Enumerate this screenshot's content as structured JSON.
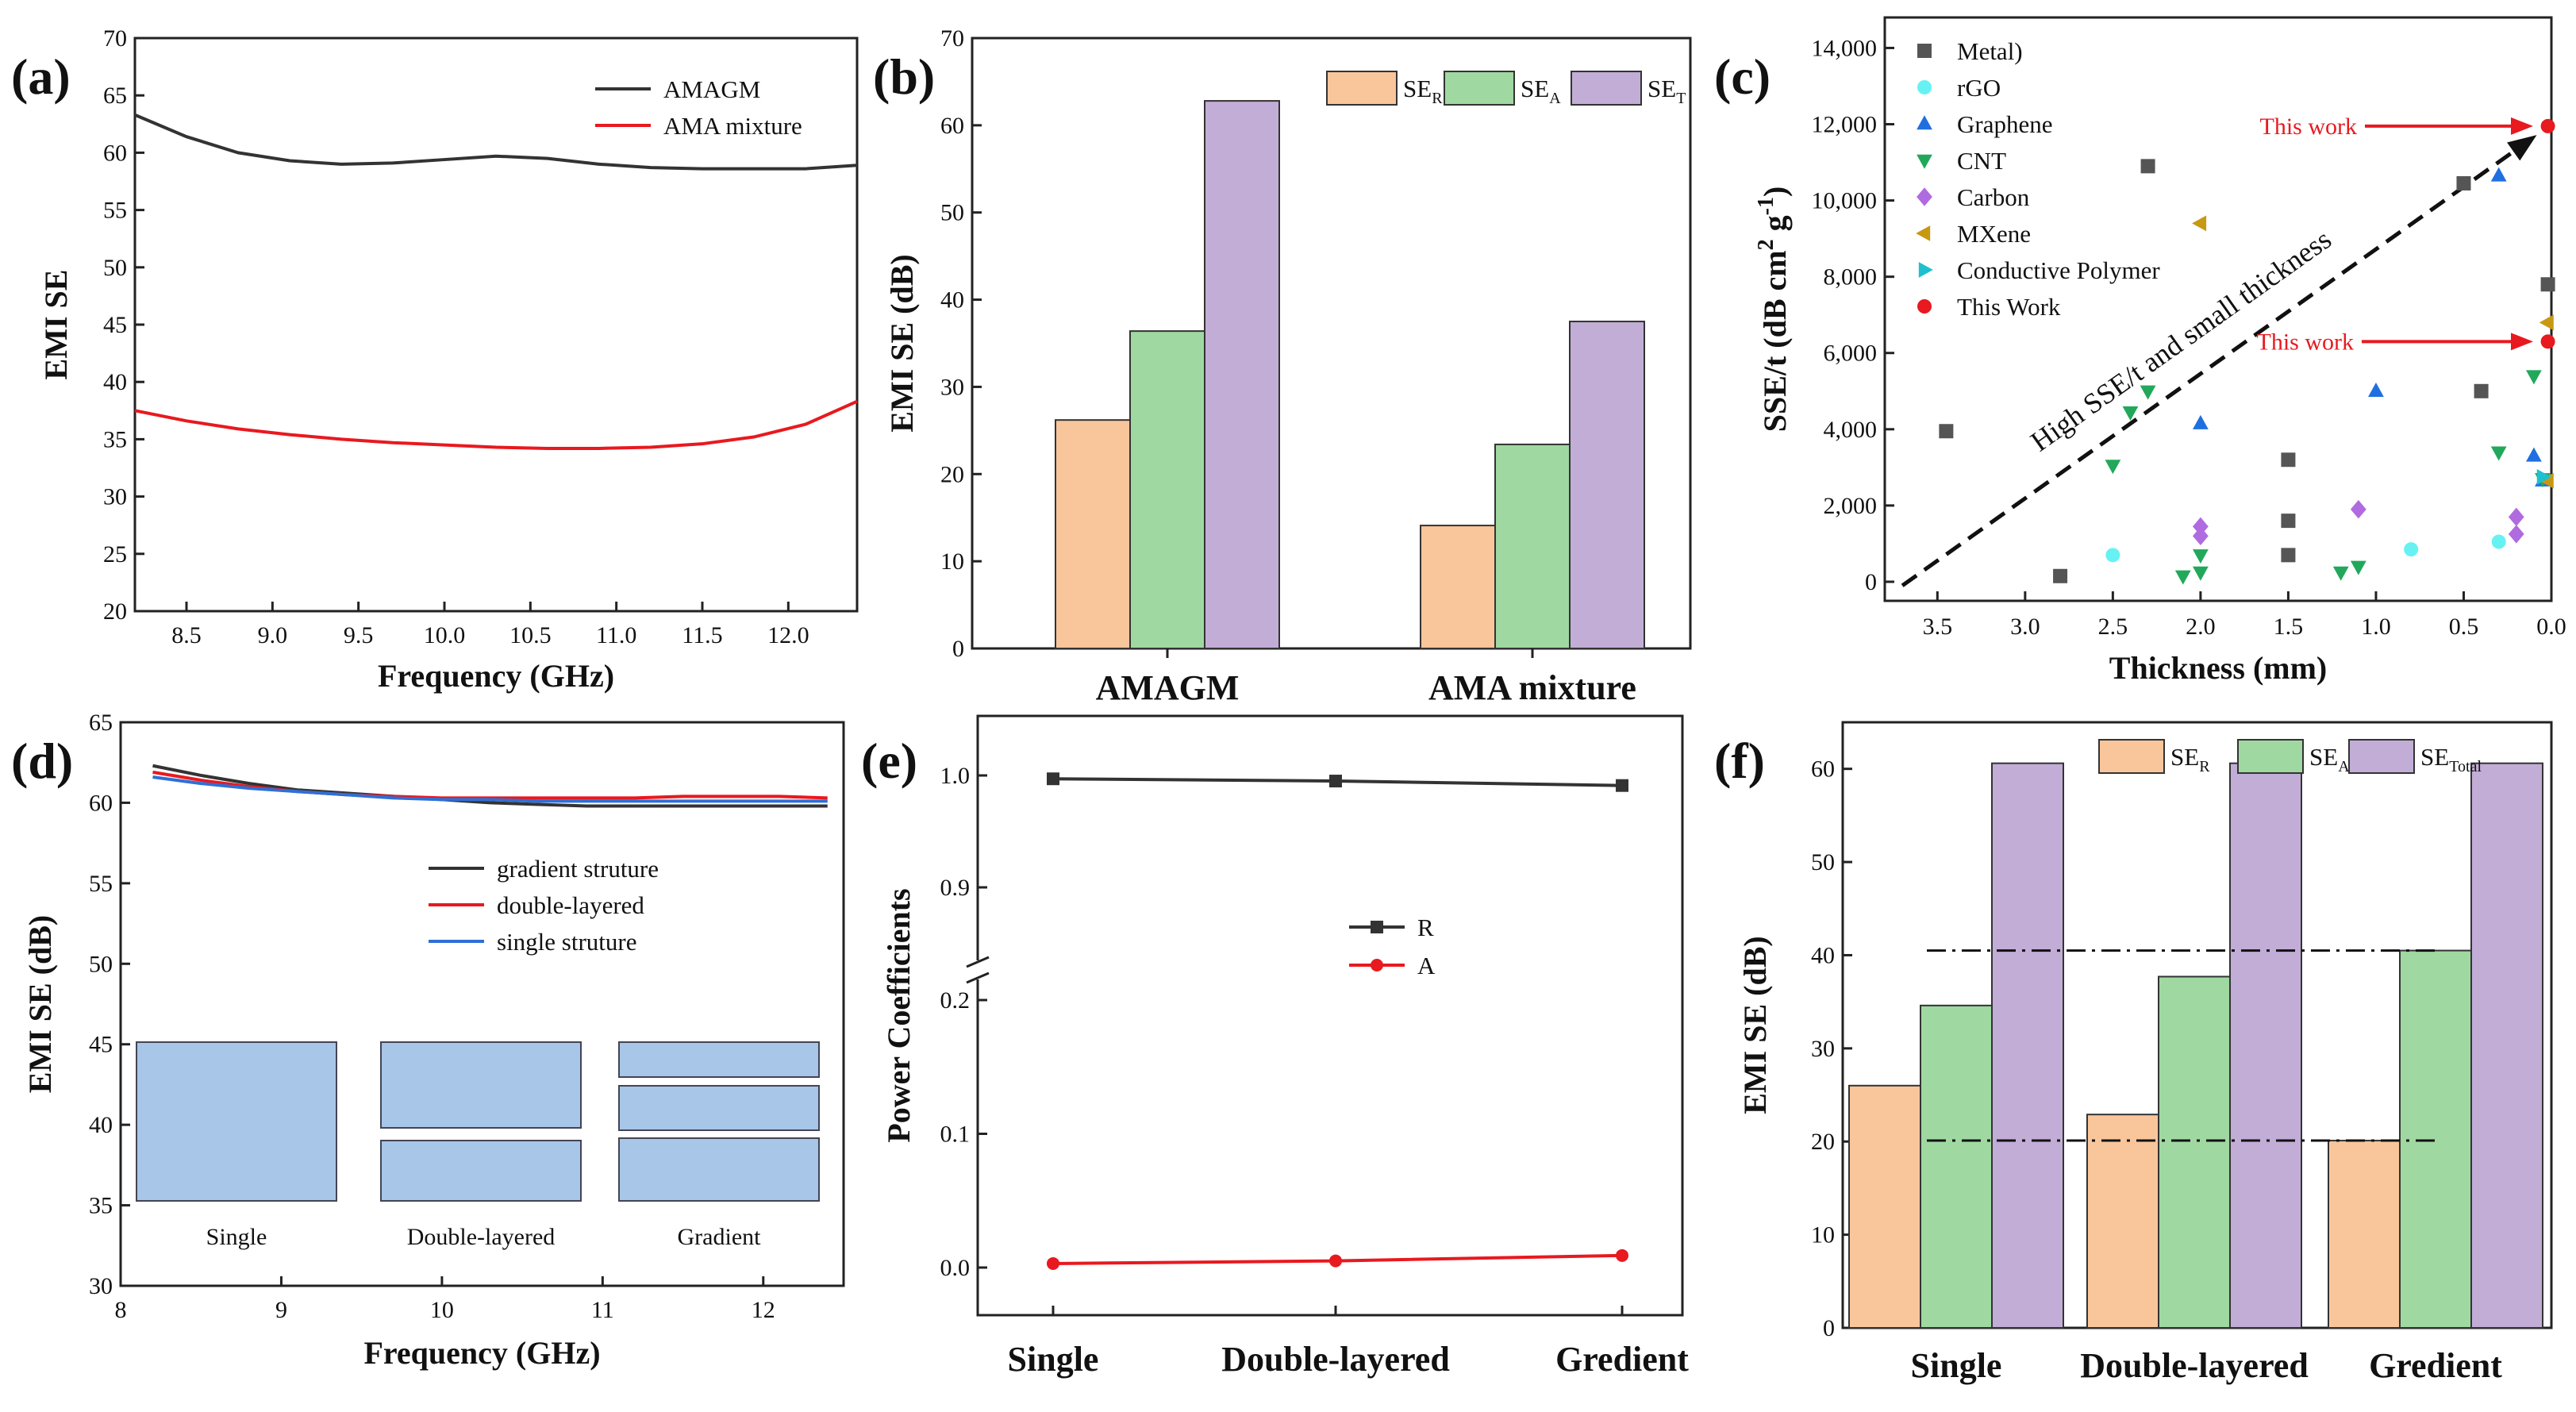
{
  "colors": {
    "sr": "#f9c69b",
    "sa": "#9fd9a1",
    "st": "#c2add7",
    "red": "#e8191f",
    "black": "#333333",
    "blue": "#2f6fd6",
    "block": "#a7c6e8"
  },
  "chart_data": [
    {
      "panel": "(a)",
      "type": "line",
      "xlabel": "Frequency (GHz)",
      "ylabel": "EMI SE",
      "xlim": [
        8.2,
        12.4
      ],
      "ylim": [
        20,
        70
      ],
      "xticks": [
        "8.5",
        "9.0",
        "9.5",
        "10.0",
        "10.5",
        "11.0",
        "11.5",
        "12.0"
      ],
      "yticks": [
        "20",
        "25",
        "30",
        "35",
        "40",
        "45",
        "50",
        "55",
        "60",
        "65",
        "70"
      ],
      "legend": "top-right",
      "series": [
        {
          "name": "AMAGM",
          "color": "#333333",
          "x": [
            8.2,
            8.5,
            8.8,
            9.1,
            9.4,
            9.7,
            10.0,
            10.3,
            10.6,
            10.9,
            11.2,
            11.5,
            11.8,
            12.1,
            12.4
          ],
          "y": [
            63.3,
            61.4,
            60.0,
            59.3,
            59.0,
            59.1,
            59.4,
            59.7,
            59.5,
            59.0,
            58.7,
            58.6,
            58.6,
            58.6,
            58.9
          ]
        },
        {
          "name": "AMA mixture",
          "color": "#e8191f",
          "x": [
            8.2,
            8.5,
            8.8,
            9.1,
            9.4,
            9.7,
            10.0,
            10.3,
            10.6,
            10.9,
            11.2,
            11.5,
            11.8,
            12.1,
            12.4
          ],
          "y": [
            37.5,
            36.6,
            35.9,
            35.4,
            35.0,
            34.7,
            34.5,
            34.3,
            34.2,
            34.2,
            34.3,
            34.6,
            35.2,
            36.3,
            38.3
          ]
        }
      ]
    },
    {
      "panel": "(b)",
      "type": "bar",
      "ylabel": "EMI SE (dB)",
      "ylim": [
        0,
        70
      ],
      "yticks": [
        "0",
        "10",
        "20",
        "30",
        "40",
        "50",
        "60",
        "70"
      ],
      "categories": [
        "AMAGM",
        "AMA mixture"
      ],
      "legend": "top-right",
      "series": [
        {
          "name": "SE",
          "sub": "R",
          "values": [
            26.2,
            14.1
          ]
        },
        {
          "name": "SE",
          "sub": "A",
          "values": [
            36.4,
            23.4
          ]
        },
        {
          "name": "SE",
          "sub": "T",
          "values": [
            62.8,
            37.5
          ]
        }
      ]
    },
    {
      "panel": "(c)",
      "type": "scatter",
      "xlabel": "Thickness (mm)",
      "ylabel": "SSE/t (dB cm",
      "ylabel_sup": "2",
      "ylabel_mid": " g",
      "ylabel_sup2": "-1",
      "ylabel_end": ")",
      "xlim": [
        3.8,
        0.0
      ],
      "ylim": [
        -500,
        14800
      ],
      "xticks": [
        "3.5",
        "3.0",
        "2.5",
        "2.0",
        "1.5",
        "1.0",
        "0.5",
        "0.0"
      ],
      "yticks": [
        "0",
        "2,000",
        "4,000",
        "6,000",
        "8,000",
        "10,000",
        "12,000",
        "14,000"
      ],
      "trend_note": "High SSE/t and small thickness",
      "callouts": [
        "This work",
        "This work"
      ],
      "series": [
        {
          "name": "Metal)",
          "marker": "square",
          "color": "#555555",
          "points": [
            [
              3.45,
              3950
            ],
            [
              2.8,
              150
            ],
            [
              2.3,
              10900
            ],
            [
              1.5,
              3200
            ],
            [
              1.5,
              1600
            ],
            [
              1.5,
              700
            ],
            [
              0.5,
              10450
            ],
            [
              0.4,
              5000
            ],
            [
              0.02,
              7800
            ]
          ]
        },
        {
          "name": "rGO",
          "marker": "circle",
          "color": "#66f2f2",
          "points": [
            [
              2.5,
              700
            ],
            [
              0.8,
              850
            ],
            [
              0.3,
              1050
            ]
          ]
        },
        {
          "name": "Graphene",
          "marker": "triangle-up",
          "color": "#1f6fe0",
          "points": [
            [
              2.0,
              4150
            ],
            [
              1.0,
              5000
            ],
            [
              0.3,
              10650
            ],
            [
              0.1,
              3300
            ],
            [
              0.05,
              2650
            ]
          ]
        },
        {
          "name": "CNT",
          "marker": "triangle-down",
          "color": "#22a85a",
          "points": [
            [
              2.5,
              3050
            ],
            [
              2.4,
              4450
            ],
            [
              2.3,
              5000
            ],
            [
              2.1,
              150
            ],
            [
              2.0,
              700
            ],
            [
              2.0,
              250
            ],
            [
              1.2,
              250
            ],
            [
              1.1,
              400
            ],
            [
              0.3,
              3400
            ],
            [
              0.1,
              5400
            ],
            [
              0.05,
              2700
            ]
          ]
        },
        {
          "name": "Carbon",
          "marker": "diamond",
          "color": "#b06be0",
          "points": [
            [
              2.0,
              1450
            ],
            [
              2.0,
              1200
            ],
            [
              1.1,
              1900
            ],
            [
              0.2,
              1700
            ],
            [
              0.2,
              1250
            ]
          ]
        },
        {
          "name": "MXene",
          "marker": "triangle-left",
          "color": "#c89812",
          "points": [
            [
              2.0,
              9400
            ],
            [
              0.02,
              6800
            ],
            [
              0.02,
              2650
            ]
          ]
        },
        {
          "name": "Conductive Polymer",
          "marker": "triangle-right",
          "color": "#1fbfd0",
          "points": [
            [
              0.05,
              2750
            ]
          ]
        },
        {
          "name": "This Work",
          "marker": "circle",
          "color": "#e8191f",
          "points": [
            [
              0.02,
              11950
            ],
            [
              0.02,
              6300
            ]
          ]
        }
      ]
    },
    {
      "panel": "(d)",
      "type": "line",
      "xlabel": "Frequency (GHz)",
      "ylabel": "EMI SE (dB)",
      "xlim": [
        8,
        12.5
      ],
      "ylim": [
        30,
        65
      ],
      "xticks": [
        "8",
        "9",
        "10",
        "11",
        "12"
      ],
      "yticks": [
        "30",
        "35",
        "40",
        "45",
        "50",
        "55",
        "60",
        "65"
      ],
      "legend": "center-right",
      "structure_labels": [
        "Single",
        "Double-layered",
        "Gradient"
      ],
      "series": [
        {
          "name": "gradient struture",
          "color": "#333333",
          "x": [
            8.2,
            8.5,
            8.8,
            9.1,
            9.4,
            9.7,
            10.0,
            10.3,
            10.6,
            10.9,
            11.2,
            11.5,
            11.8,
            12.1,
            12.4
          ],
          "y": [
            62.3,
            61.7,
            61.2,
            60.8,
            60.6,
            60.4,
            60.2,
            60.0,
            59.9,
            59.8,
            59.8,
            59.8,
            59.8,
            59.8,
            59.8
          ]
        },
        {
          "name": "double-layered",
          "color": "#e8191f",
          "x": [
            8.2,
            8.5,
            8.8,
            9.1,
            9.4,
            9.7,
            10.0,
            10.3,
            10.6,
            10.9,
            11.2,
            11.5,
            11.8,
            12.1,
            12.4
          ],
          "y": [
            61.9,
            61.4,
            61.0,
            60.7,
            60.5,
            60.4,
            60.3,
            60.3,
            60.3,
            60.3,
            60.3,
            60.4,
            60.4,
            60.4,
            60.3
          ]
        },
        {
          "name": "single struture",
          "color": "#2f6fd6",
          "x": [
            8.2,
            8.5,
            8.8,
            9.1,
            9.4,
            9.7,
            10.0,
            10.3,
            10.6,
            10.9,
            11.2,
            11.5,
            11.8,
            12.1,
            12.4
          ],
          "y": [
            61.6,
            61.2,
            60.9,
            60.7,
            60.5,
            60.3,
            60.2,
            60.2,
            60.1,
            60.1,
            60.1,
            60.1,
            60.1,
            60.1,
            60.1
          ]
        }
      ]
    },
    {
      "panel": "(e)",
      "type": "line",
      "ylabel": "Power Coefficients",
      "categories": [
        "Single",
        "Double-layered",
        "Gredient"
      ],
      "yticks_low": [
        "0.0",
        "0.1",
        "0.2"
      ],
      "yticks_high": [
        "0.9",
        "1.0"
      ],
      "legend": "center",
      "series": [
        {
          "name": "R",
          "color": "#333333",
          "values": [
            0.997,
            0.995,
            0.991
          ]
        },
        {
          "name": "A",
          "color": "#e8191f",
          "values": [
            0.003,
            0.005,
            0.009
          ]
        }
      ]
    },
    {
      "panel": "(f)",
      "type": "bar",
      "ylabel": "EMI SE (dB)",
      "ylim": [
        0,
        65
      ],
      "yticks": [
        "0",
        "10",
        "20",
        "30",
        "40",
        "50",
        "60"
      ],
      "categories": [
        "Single",
        "Double-layered",
        "Gredient"
      ],
      "legend": "top-right",
      "reference_lines": [
        40.5,
        20.1
      ],
      "series": [
        {
          "name": "SE",
          "sub": "R",
          "values": [
            26.0,
            22.9,
            20.1
          ]
        },
        {
          "name": "SE",
          "sub": "A",
          "values": [
            34.6,
            37.7,
            40.5
          ]
        },
        {
          "name": "SE",
          "sub": "Total",
          "values": [
            60.6,
            60.6,
            60.6
          ]
        }
      ]
    }
  ]
}
